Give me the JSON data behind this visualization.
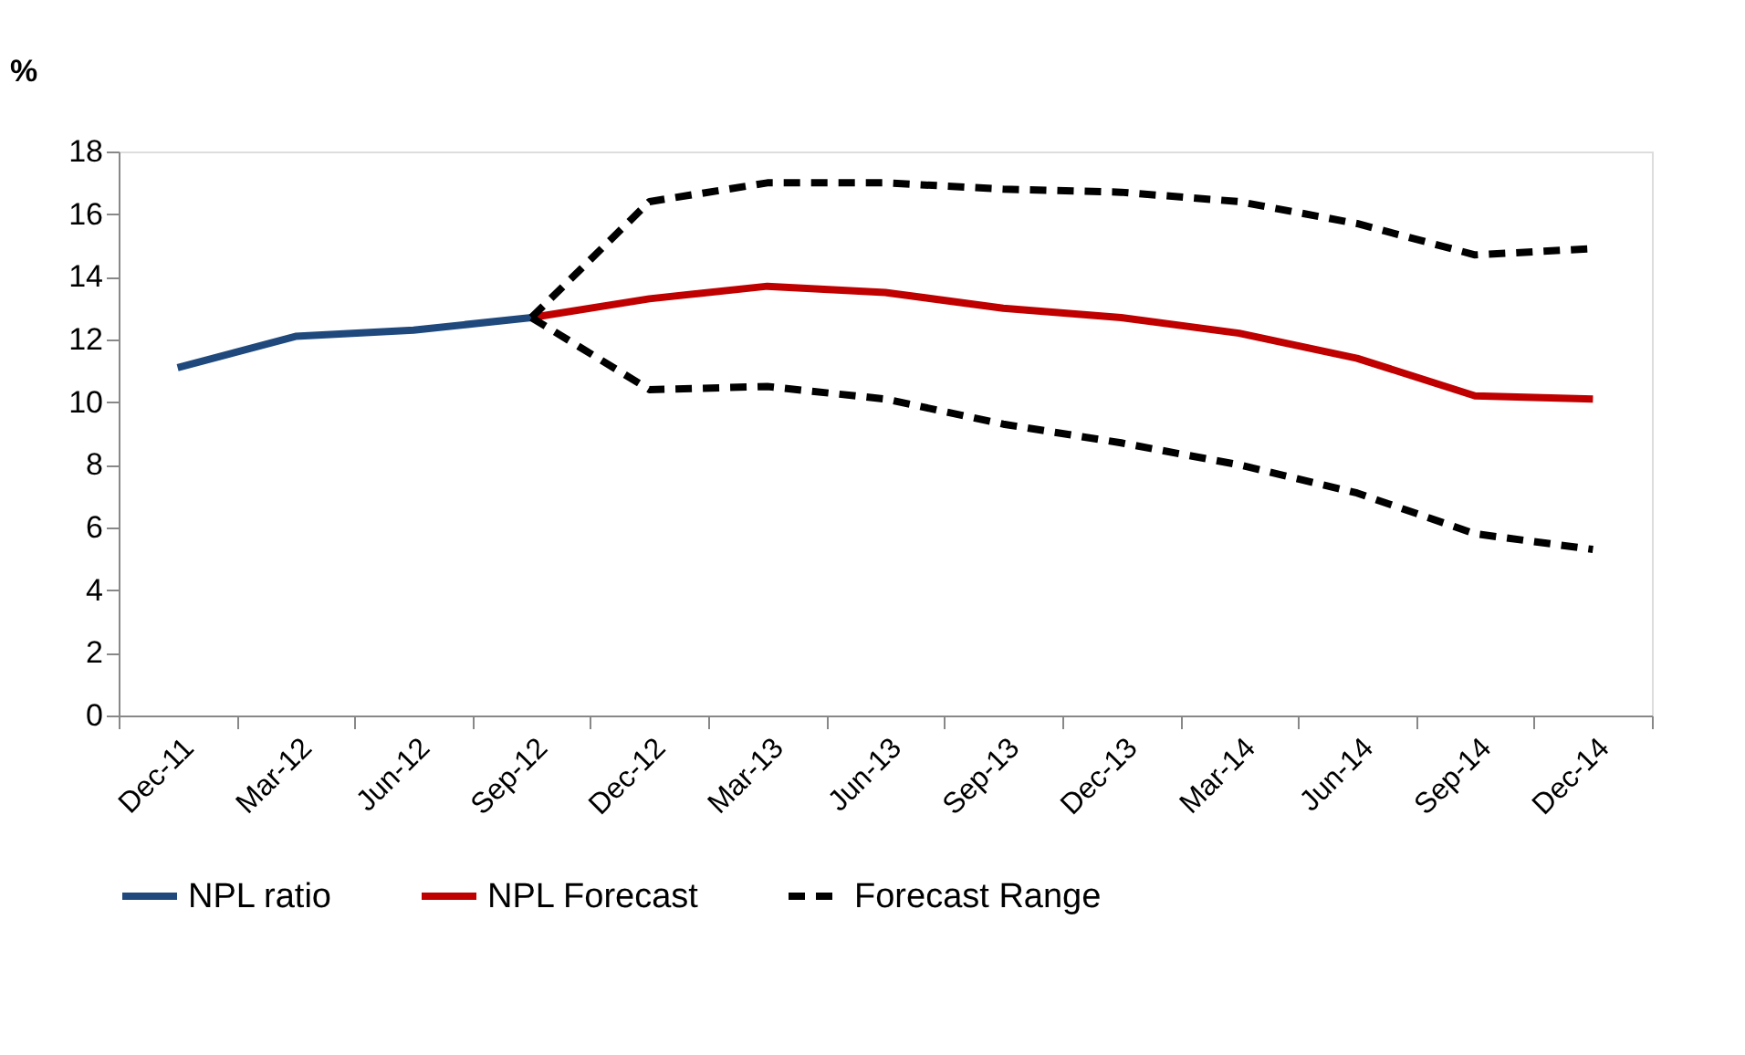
{
  "chart_data": {
    "type": "line",
    "ylabel": "%",
    "categories": [
      "Dec-11",
      "Mar-12",
      "Jun-12",
      "Sep-12",
      "Dec-12",
      "Mar-13",
      "Jun-13",
      "Sep-13",
      "Dec-13",
      "Mar-14",
      "Jun-14",
      "Sep-14",
      "Dec-14"
    ],
    "series": [
      {
        "name": "NPL ratio",
        "color": "#1f497d",
        "line_style": "solid",
        "values": [
          11.1,
          12.1,
          12.3,
          12.7,
          null,
          null,
          null,
          null,
          null,
          null,
          null,
          null,
          null
        ]
      },
      {
        "name": "NPL Forecast",
        "color": "#c00000",
        "line_style": "solid",
        "values": [
          null,
          null,
          null,
          12.7,
          13.3,
          13.7,
          13.5,
          13.0,
          12.7,
          12.2,
          11.4,
          10.2,
          10.1
        ]
      },
      {
        "name": "Forecast Range",
        "color": "#000000",
        "line_style": "dashed",
        "values": [
          null,
          null,
          null,
          12.7,
          16.4,
          17.0,
          17.0,
          16.8,
          16.7,
          16.4,
          15.7,
          14.7,
          14.9
        ]
      },
      {
        "color": "#000000",
        "line_style": "dashed",
        "values": [
          null,
          null,
          null,
          12.7,
          10.4,
          10.5,
          10.1,
          9.3,
          8.7,
          8.0,
          7.1,
          5.8,
          5.3
        ]
      }
    ],
    "ylim": [
      0,
      18
    ],
    "yticks": [
      0,
      2,
      4,
      6,
      8,
      10,
      12,
      14,
      16,
      18
    ],
    "grid": false,
    "legend": "bottom",
    "marker": "none"
  }
}
